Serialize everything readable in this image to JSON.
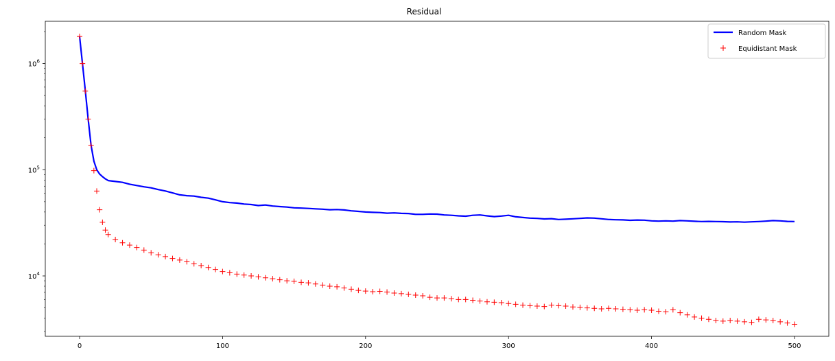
{
  "chart_data": {
    "type": "line",
    "title": "Residual",
    "xlabel": "",
    "ylabel": "",
    "xlim": [
      -24,
      524
    ],
    "ylim": [
      2700,
      2500000
    ],
    "yscale": "log",
    "grid": false,
    "legend_position": "top-right",
    "x_ticks": [
      0,
      100,
      200,
      300,
      400,
      500
    ],
    "x_tick_labels": [
      "0",
      "100",
      "200",
      "300",
      "400",
      "500"
    ],
    "y_ticks": [
      {
        "value": 10000,
        "base": "10",
        "exp": "4"
      },
      {
        "value": 100000,
        "base": "10",
        "exp": "5"
      },
      {
        "value": 1000000,
        "base": "10",
        "exp": "6"
      }
    ],
    "series": [
      {
        "name": "Random Mask",
        "style": "line",
        "color": "#0000ff",
        "points": [
          [
            0,
            1800000
          ],
          [
            2,
            1000000
          ],
          [
            4,
            550000
          ],
          [
            6,
            300000
          ],
          [
            8,
            170000
          ],
          [
            10,
            120000
          ],
          [
            12,
            100000
          ],
          [
            14,
            91000
          ],
          [
            16,
            86000
          ],
          [
            18,
            82000
          ],
          [
            20,
            79000
          ],
          [
            25,
            77500
          ],
          [
            30,
            76000
          ],
          [
            35,
            73000
          ],
          [
            40,
            71000
          ],
          [
            45,
            69000
          ],
          [
            50,
            67500
          ],
          [
            55,
            65000
          ],
          [
            60,
            63000
          ],
          [
            65,
            60500
          ],
          [
            70,
            58000
          ],
          [
            75,
            57000
          ],
          [
            80,
            56500
          ],
          [
            85,
            55000
          ],
          [
            90,
            54000
          ],
          [
            95,
            52000
          ],
          [
            100,
            50000
          ],
          [
            105,
            49000
          ],
          [
            110,
            48500
          ],
          [
            115,
            47500
          ],
          [
            120,
            47000
          ],
          [
            125,
            46000
          ],
          [
            130,
            46500
          ],
          [
            135,
            45500
          ],
          [
            140,
            45000
          ],
          [
            145,
            44500
          ],
          [
            150,
            43800
          ],
          [
            155,
            43500
          ],
          [
            160,
            43200
          ],
          [
            165,
            42800
          ],
          [
            170,
            42500
          ],
          [
            175,
            42000
          ],
          [
            180,
            42200
          ],
          [
            185,
            41800
          ],
          [
            190,
            41000
          ],
          [
            195,
            40500
          ],
          [
            200,
            40000
          ],
          [
            205,
            39700
          ],
          [
            210,
            39500
          ],
          [
            215,
            39000
          ],
          [
            220,
            39200
          ],
          [
            225,
            38800
          ],
          [
            230,
            38700
          ],
          [
            235,
            38000
          ],
          [
            240,
            38000
          ],
          [
            245,
            38300
          ],
          [
            250,
            38200
          ],
          [
            255,
            37500
          ],
          [
            260,
            37200
          ],
          [
            265,
            36800
          ],
          [
            270,
            36500
          ],
          [
            275,
            37200
          ],
          [
            280,
            37500
          ],
          [
            285,
            36800
          ],
          [
            290,
            36200
          ],
          [
            295,
            36600
          ],
          [
            300,
            37200
          ],
          [
            305,
            36000
          ],
          [
            310,
            35500
          ],
          [
            315,
            35000
          ],
          [
            320,
            34800
          ],
          [
            325,
            34400
          ],
          [
            330,
            34600
          ],
          [
            335,
            34000
          ],
          [
            340,
            34200
          ],
          [
            345,
            34500
          ],
          [
            350,
            34800
          ],
          [
            355,
            35200
          ],
          [
            360,
            35000
          ],
          [
            365,
            34500
          ],
          [
            370,
            34000
          ],
          [
            375,
            33800
          ],
          [
            380,
            33700
          ],
          [
            385,
            33400
          ],
          [
            390,
            33600
          ],
          [
            395,
            33500
          ],
          [
            400,
            33000
          ],
          [
            405,
            32800
          ],
          [
            410,
            33000
          ],
          [
            415,
            32800
          ],
          [
            420,
            33200
          ],
          [
            425,
            33000
          ],
          [
            430,
            32700
          ],
          [
            435,
            32500
          ],
          [
            440,
            32600
          ],
          [
            445,
            32500
          ],
          [
            450,
            32400
          ],
          [
            455,
            32200
          ],
          [
            460,
            32300
          ],
          [
            465,
            32100
          ],
          [
            470,
            32300
          ],
          [
            475,
            32500
          ],
          [
            480,
            32800
          ],
          [
            485,
            33200
          ],
          [
            490,
            33000
          ],
          [
            495,
            32600
          ],
          [
            500,
            32500
          ]
        ]
      },
      {
        "name": "Equidistant Mask",
        "style": "marker-plus",
        "color": "#ff0000",
        "points": [
          [
            0,
            1800000
          ],
          [
            2,
            1000000
          ],
          [
            4,
            550000
          ],
          [
            6,
            300000
          ],
          [
            8,
            170000
          ],
          [
            10,
            98000
          ],
          [
            12,
            63000
          ],
          [
            14,
            42000
          ],
          [
            16,
            32000
          ],
          [
            18,
            27000
          ],
          [
            20,
            24500
          ],
          [
            25,
            22000
          ],
          [
            30,
            20500
          ],
          [
            35,
            19500
          ],
          [
            40,
            18500
          ],
          [
            45,
            17500
          ],
          [
            50,
            16500
          ],
          [
            55,
            15800
          ],
          [
            60,
            15200
          ],
          [
            65,
            14600
          ],
          [
            70,
            14100
          ],
          [
            75,
            13600
          ],
          [
            80,
            13000
          ],
          [
            85,
            12500
          ],
          [
            90,
            12000
          ],
          [
            95,
            11500
          ],
          [
            100,
            11000
          ],
          [
            105,
            10700
          ],
          [
            110,
            10400
          ],
          [
            115,
            10200
          ],
          [
            120,
            10000
          ],
          [
            125,
            9800
          ],
          [
            130,
            9600
          ],
          [
            135,
            9400
          ],
          [
            140,
            9200
          ],
          [
            145,
            9000
          ],
          [
            150,
            8900
          ],
          [
            155,
            8700
          ],
          [
            160,
            8600
          ],
          [
            165,
            8400
          ],
          [
            170,
            8200
          ],
          [
            175,
            8000
          ],
          [
            180,
            7900
          ],
          [
            185,
            7700
          ],
          [
            190,
            7500
          ],
          [
            195,
            7300
          ],
          [
            200,
            7200
          ],
          [
            205,
            7100
          ],
          [
            210,
            7150
          ],
          [
            215,
            7050
          ],
          [
            220,
            6900
          ],
          [
            225,
            6800
          ],
          [
            230,
            6700
          ],
          [
            235,
            6600
          ],
          [
            240,
            6500
          ],
          [
            245,
            6300
          ],
          [
            250,
            6200
          ],
          [
            255,
            6200
          ],
          [
            260,
            6100
          ],
          [
            265,
            6000
          ],
          [
            270,
            6000
          ],
          [
            275,
            5900
          ],
          [
            280,
            5800
          ],
          [
            285,
            5700
          ],
          [
            290,
            5650
          ],
          [
            295,
            5600
          ],
          [
            300,
            5500
          ],
          [
            305,
            5400
          ],
          [
            310,
            5300
          ],
          [
            315,
            5250
          ],
          [
            320,
            5200
          ],
          [
            325,
            5150
          ],
          [
            330,
            5300
          ],
          [
            335,
            5250
          ],
          [
            340,
            5200
          ],
          [
            345,
            5100
          ],
          [
            350,
            5050
          ],
          [
            355,
            5000
          ],
          [
            360,
            4950
          ],
          [
            365,
            4900
          ],
          [
            370,
            4950
          ],
          [
            375,
            4900
          ],
          [
            380,
            4850
          ],
          [
            385,
            4800
          ],
          [
            390,
            4750
          ],
          [
            395,
            4800
          ],
          [
            400,
            4750
          ],
          [
            405,
            4650
          ],
          [
            410,
            4600
          ],
          [
            415,
            4800
          ],
          [
            420,
            4500
          ],
          [
            425,
            4300
          ],
          [
            430,
            4100
          ],
          [
            435,
            4000
          ],
          [
            440,
            3900
          ],
          [
            445,
            3800
          ],
          [
            450,
            3750
          ],
          [
            455,
            3800
          ],
          [
            460,
            3750
          ],
          [
            465,
            3700
          ],
          [
            470,
            3650
          ],
          [
            475,
            3900
          ],
          [
            480,
            3850
          ],
          [
            485,
            3800
          ],
          [
            490,
            3700
          ],
          [
            495,
            3600
          ],
          [
            500,
            3500
          ]
        ]
      }
    ]
  }
}
